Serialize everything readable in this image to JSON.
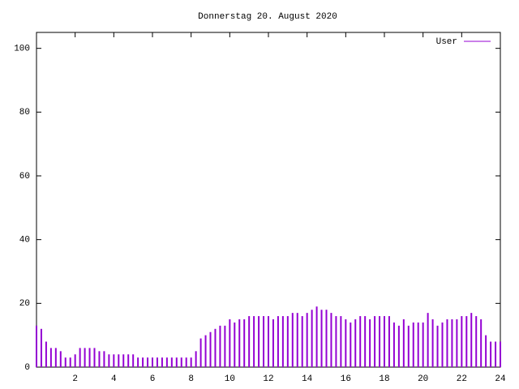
{
  "chart_data": {
    "type": "impulses",
    "title": "Donnerstag 20. August 2020",
    "x": [
      0,
      0.25,
      0.5,
      0.75,
      1,
      1.25,
      1.5,
      1.75,
      2,
      2.25,
      2.5,
      2.75,
      3,
      3.25,
      3.5,
      3.75,
      4,
      4.25,
      4.5,
      4.75,
      5,
      5.25,
      5.5,
      5.75,
      6,
      6.25,
      6.5,
      6.75,
      7,
      7.25,
      7.5,
      7.75,
      8,
      8.25,
      8.5,
      8.75,
      9,
      9.25,
      9.5,
      9.75,
      10,
      10.25,
      10.5,
      10.75,
      11,
      11.25,
      11.5,
      11.75,
      12,
      12.25,
      12.5,
      12.75,
      13,
      13.25,
      13.5,
      13.75,
      14,
      14.25,
      14.5,
      14.75,
      15,
      15.25,
      15.5,
      15.75,
      16,
      16.25,
      16.5,
      16.75,
      17,
      17.25,
      17.5,
      17.75,
      18,
      18.25,
      18.5,
      18.75,
      19,
      19.25,
      19.5,
      19.75,
      20,
      20.25,
      20.5,
      20.75,
      21,
      21.25,
      21.5,
      21.75,
      22,
      22.25,
      22.5,
      22.75,
      23,
      23.25,
      23.5,
      23.75,
      24
    ],
    "series": [
      {
        "name": "User",
        "color": "#9400d3",
        "values": [
          13,
          12,
          8,
          6,
          6,
          5,
          3,
          3,
          4,
          6,
          6,
          6,
          6,
          5,
          5,
          4,
          4,
          4,
          4,
          4,
          4,
          3,
          3,
          3,
          3,
          3,
          3,
          3,
          3,
          3,
          3,
          3,
          3,
          5,
          9,
          10,
          11,
          12,
          13,
          13,
          15,
          14,
          15,
          15,
          16,
          16,
          16,
          16,
          16,
          15,
          16,
          16,
          16,
          17,
          17,
          16,
          17,
          18,
          19,
          18,
          18,
          17,
          16,
          16,
          15,
          14,
          15,
          16,
          16,
          15,
          16,
          16,
          16,
          16,
          14,
          13,
          15,
          13,
          14,
          14,
          14,
          17,
          15,
          13,
          14,
          15,
          15,
          15,
          16,
          16,
          17,
          16,
          15,
          10,
          8,
          8,
          8
        ]
      }
    ],
    "xlim": [
      0,
      24
    ],
    "xticks": [
      2,
      4,
      6,
      8,
      10,
      12,
      14,
      16,
      18,
      20,
      22,
      24
    ],
    "ylim": [
      0,
      105
    ],
    "yticks": [
      0,
      20,
      40,
      60,
      80,
      100
    ],
    "legend": "top-right"
  }
}
